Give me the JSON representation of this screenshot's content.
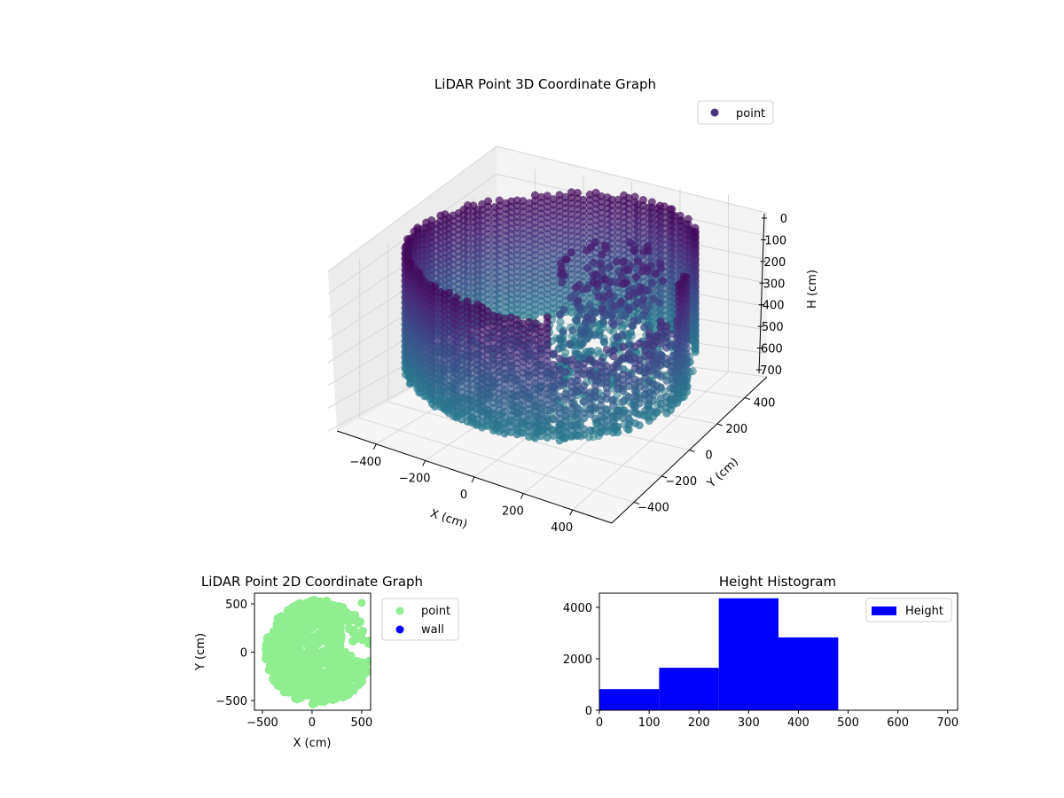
{
  "chart_data": [
    {
      "type": "scatter3d",
      "title": "LiDAR Point 3D Coordinate Graph",
      "xlabel": "X (cm)",
      "ylabel": "Y (cm)",
      "zlabel": "H (cm)",
      "xlim": [
        -560,
        560
      ],
      "ylim": [
        -560,
        560
      ],
      "zlim": [
        0,
        700
      ],
      "zinverted": true,
      "xticks": [
        -400,
        -200,
        0,
        200,
        400
      ],
      "yticks": [
        -400,
        -200,
        0,
        200,
        400
      ],
      "zticks": [
        0,
        100,
        200,
        300,
        400,
        500,
        600,
        700
      ],
      "xtick_labels": [
        "−400",
        "−200",
        "0",
        "200",
        "400"
      ],
      "ytick_labels": [
        "−400",
        "−200",
        "0",
        "200",
        "400"
      ],
      "ztick_labels": [
        "0",
        "100",
        "200",
        "300",
        "400",
        "500",
        "600",
        "700"
      ],
      "series": [
        {
          "name": "point",
          "colormap": "viridis"
        }
      ],
      "legend": {
        "labels": [
          "point"
        ],
        "color": "#46327e",
        "position": "top-right"
      },
      "grid": true,
      "wall": {
        "radius": 520,
        "height_min": 20,
        "height_max": 520
      },
      "floor_disk": {
        "radius": 500,
        "height": 520
      },
      "cluster": {
        "center": [
          150,
          150
        ],
        "height_range": [
          100,
          500
        ]
      }
    },
    {
      "type": "scatter",
      "title": "LiDAR Point 2D Coordinate Graph",
      "xlabel": "X (cm)",
      "ylabel": "Y (cm)",
      "xlim": [
        -580,
        590
      ],
      "ylim": [
        -600,
        610
      ],
      "xticks": [
        -500,
        0,
        500
      ],
      "yticks": [
        -500,
        0,
        500
      ],
      "xtick_labels": [
        "−500",
        "0",
        "500"
      ],
      "ytick_labels": [
        "−500",
        "0",
        "500"
      ],
      "series": [
        {
          "name": "point",
          "color": "#90ee90"
        },
        {
          "name": "wall",
          "color": "#0000ff"
        }
      ],
      "legend": {
        "labels": [
          "point",
          "wall"
        ],
        "position": "outside-right"
      },
      "grid": false
    },
    {
      "type": "bar",
      "title": "Height Histogram",
      "bin_edges": [
        0,
        120,
        240,
        360,
        480,
        600,
        720
      ],
      "values": [
        820,
        1650,
        4350,
        2830,
        0,
        0
      ],
      "xlim": [
        0,
        720
      ],
      "ylim": [
        0,
        4550
      ],
      "xticks": [
        0,
        100,
        200,
        300,
        400,
        500,
        600,
        700
      ],
      "yticks": [
        0,
        2000,
        4000
      ],
      "xtick_labels": [
        "0",
        "100",
        "200",
        "300",
        "400",
        "500",
        "600",
        "700"
      ],
      "ytick_labels": [
        "0",
        "2000",
        "4000"
      ],
      "series": [
        {
          "name": "Height",
          "color": "#0000ff"
        }
      ],
      "legend": {
        "labels": [
          "Height"
        ],
        "position": "top-right"
      },
      "grid": false
    }
  ]
}
